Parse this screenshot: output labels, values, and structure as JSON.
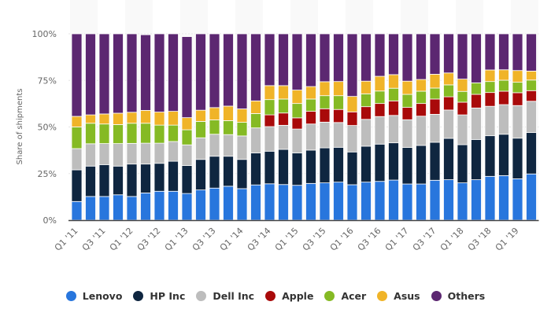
{
  "chart_data": {
    "type": "bar",
    "stacked": true,
    "title": "",
    "xlabel": "",
    "ylabel": "Share of shipments",
    "ylim": [
      0,
      100
    ],
    "y_ticks": [
      "0%",
      "25%",
      "50%",
      "75%",
      "100%"
    ],
    "y_tick_values": [
      0,
      25,
      50,
      75,
      100
    ],
    "grid": true,
    "legend_position": "bottom",
    "categories": [
      "Q1 '11",
      "Q2 '11",
      "Q3 '11",
      "Q4 '11",
      "Q1 '12",
      "Q2 '12",
      "Q3 '12",
      "Q4 '12",
      "Q1 '13",
      "Q2 '13",
      "Q3 '13",
      "Q4 '13",
      "Q1 '14",
      "Q2 '14",
      "Q3 '14",
      "Q4 '14",
      "Q1 '15",
      "Q2 '15",
      "Q3 '15",
      "Q4 '15",
      "Q1 '16",
      "Q2 '16",
      "Q3 '16",
      "Q4 '16",
      "Q1 '17",
      "Q2 '17",
      "Q3 '17",
      "Q4 '17",
      "Q1 '18",
      "Q2 '18",
      "Q3 '18",
      "Q4 '18",
      "Q1 '19",
      "Q2 '19"
    ],
    "x_tick_labels": [
      "Q1 '11",
      "Q3 '11",
      "Q1 '12",
      "Q3 '12",
      "Q1 '13",
      "Q3 '13",
      "Q1 '14",
      "Q3 '14",
      "Q1 '15",
      "Q3 '15",
      "Q1 '16",
      "Q3 '16",
      "Q1 '17",
      "Q3 '17",
      "Q1 '18",
      "Q3 '18",
      "Q1 '19"
    ],
    "series": [
      {
        "name": "Lenovo",
        "color": "#2876dd",
        "values": [
          10.0,
          12.7,
          12.7,
          13.6,
          12.7,
          14.6,
          15.5,
          15.5,
          14.3,
          16.2,
          17.2,
          18.2,
          16.9,
          18.9,
          19.5,
          19.1,
          18.7,
          19.7,
          20.0,
          20.4,
          19.0,
          20.4,
          20.8,
          21.5,
          19.4,
          19.4,
          21.4,
          21.7,
          20.0,
          21.7,
          23.5,
          23.9,
          22.2,
          24.8
        ]
      },
      {
        "name": "HP Inc",
        "color": "#0f2640",
        "values": [
          17.0,
          16.3,
          17.1,
          15.4,
          17.4,
          15.5,
          15.0,
          16.1,
          15.0,
          16.4,
          17.1,
          16.1,
          15.7,
          17.2,
          17.5,
          18.9,
          17.4,
          17.9,
          18.8,
          18.7,
          17.6,
          19.3,
          20.0,
          20.0,
          19.6,
          20.7,
          20.4,
          22.2,
          20.5,
          21.6,
          21.8,
          22.2,
          21.8,
          22.2
        ]
      },
      {
        "name": "Dell Inc",
        "color": "#bdbdbd",
        "values": [
          11.4,
          12.0,
          11.3,
          12.1,
          11.1,
          11.2,
          10.8,
          10.6,
          11.1,
          11.6,
          11.8,
          11.6,
          12.6,
          13.4,
          13.2,
          12.9,
          12.8,
          14.0,
          13.8,
          13.3,
          14.2,
          14.4,
          14.8,
          14.7,
          14.9,
          15.7,
          15.0,
          15.2,
          16.0,
          16.9,
          15.8,
          15.9,
          17.5,
          16.8
        ]
      },
      {
        "name": "Apple",
        "color": "#a90a0a",
        "values": [
          0,
          0,
          0,
          0,
          0,
          0,
          0,
          0,
          0,
          0,
          0,
          0,
          0,
          0,
          6.3,
          6.6,
          6.0,
          6.8,
          7.2,
          7.0,
          7.3,
          6.8,
          7.0,
          7.8,
          6.6,
          6.8,
          8.2,
          7.1,
          6.8,
          7.3,
          7.4,
          7.2,
          6.9,
          5.7
        ]
      },
      {
        "name": "Acer",
        "color": "#85ba24",
        "values": [
          11.6,
          11.0,
          10.5,
          10.2,
          10.8,
          10.7,
          9.7,
          8.8,
          8.1,
          8.8,
          7.7,
          7.5,
          7.3,
          7.7,
          8.2,
          7.5,
          7.7,
          6.6,
          7.0,
          7.4,
          0,
          6.9,
          6.7,
          6.8,
          7.0,
          6.6,
          5.9,
          6.4,
          5.8,
          6.2,
          5.9,
          5.9,
          5.6,
          5.7
        ]
      },
      {
        "name": "Asus",
        "color": "#f0b428",
        "values": [
          5.7,
          4.5,
          5.4,
          6.1,
          5.9,
          6.9,
          7.0,
          7.4,
          6.5,
          6.0,
          6.6,
          7.8,
          7.2,
          6.8,
          7.5,
          7.2,
          7.2,
          6.7,
          7.5,
          7.6,
          8.3,
          6.8,
          7.9,
          7.3,
          7.1,
          6.3,
          7.4,
          6.4,
          6.6,
          0,
          6.2,
          5.6,
          6.3,
          4.8
        ]
      },
      {
        "name": "Others",
        "color": "#5c2771",
        "values": [
          44.3,
          43.5,
          43.0,
          42.6,
          42.1,
          40.6,
          42.0,
          41.6,
          43.5,
          41.0,
          39.6,
          38.8,
          40.3,
          36.0,
          27.8,
          27.8,
          30.2,
          28.3,
          25.7,
          25.6,
          33.6,
          25.4,
          22.8,
          21.9,
          25.4,
          24.5,
          21.7,
          21.0,
          24.3,
          26.3,
          19.4,
          19.3,
          19.7,
          20.0
        ]
      }
    ]
  }
}
